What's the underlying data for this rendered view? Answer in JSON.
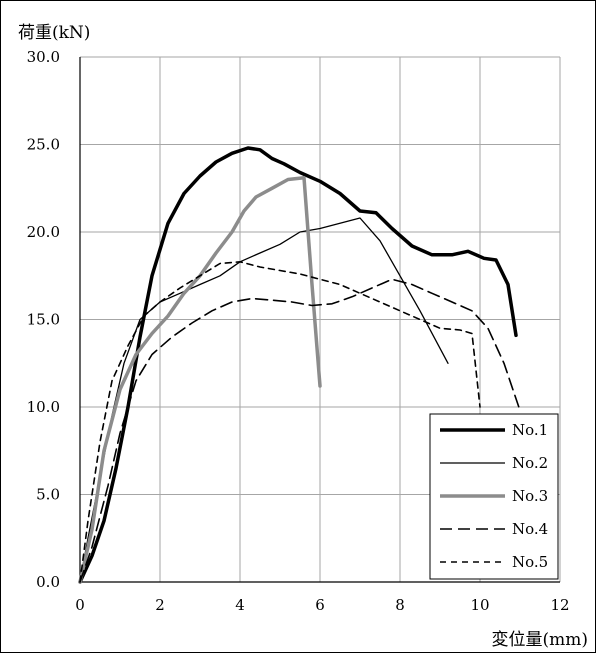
{
  "chart_data": {
    "type": "line",
    "title": "",
    "xlabel": "変位量(mm)",
    "ylabel": "荷重(kN)",
    "xlim": [
      0,
      12
    ],
    "ylim": [
      0,
      30
    ],
    "xticks": [
      "0",
      "2",
      "4",
      "6",
      "8",
      "10",
      "12"
    ],
    "yticks": [
      "0.0",
      "5.0",
      "10.0",
      "15.0",
      "20.0",
      "25.0",
      "30.0"
    ],
    "grid": true,
    "legend_position": "bottom-right",
    "series": [
      {
        "name": "No.1",
        "color": "#000000",
        "style": "solid-thick",
        "x": [
          0,
          0.3,
          0.6,
          0.9,
          1.2,
          1.5,
          1.8,
          2.2,
          2.6,
          3.0,
          3.4,
          3.8,
          4.2,
          4.5,
          4.8,
          5.1,
          5.5,
          6.0,
          6.5,
          7.0,
          7.4,
          7.8,
          8.3,
          8.8,
          9.3,
          9.7,
          10.1,
          10.4,
          10.7,
          10.9
        ],
        "y": [
          0,
          1.5,
          3.5,
          6.5,
          10.0,
          14.0,
          17.5,
          20.5,
          22.2,
          23.2,
          24.0,
          24.5,
          24.8,
          24.7,
          24.2,
          23.9,
          23.4,
          22.9,
          22.2,
          21.2,
          21.1,
          20.2,
          19.2,
          18.7,
          18.7,
          18.9,
          18.5,
          18.4,
          17.0,
          14.1
        ]
      },
      {
        "name": "No.2",
        "color": "#000000",
        "style": "solid-thin",
        "x": [
          0,
          0.2,
          0.5,
          0.8,
          1.1,
          1.5,
          2.0,
          2.5,
          3.0,
          3.5,
          4.0,
          4.5,
          5.0,
          5.5,
          6.0,
          6.5,
          7.0,
          7.5,
          8.0,
          8.5,
          9.2
        ],
        "y": [
          0,
          2.5,
          6.0,
          9.5,
          12.5,
          15.0,
          16.0,
          16.5,
          17.0,
          17.5,
          18.3,
          18.8,
          19.3,
          20.0,
          20.2,
          20.5,
          20.8,
          19.5,
          17.5,
          15.5,
          12.5
        ]
      },
      {
        "name": "No.3",
        "color": "#8c8c8c",
        "style": "solid-thick",
        "x": [
          0,
          0.3,
          0.6,
          1.0,
          1.4,
          1.8,
          2.2,
          2.6,
          3.0,
          3.4,
          3.8,
          4.1,
          4.4,
          4.8,
          5.2,
          5.6,
          5.8,
          6.0
        ],
        "y": [
          0,
          3.0,
          7.5,
          11.0,
          13.0,
          14.2,
          15.2,
          16.5,
          17.5,
          18.8,
          20.0,
          21.2,
          22.0,
          22.5,
          23.0,
          23.1,
          17.0,
          11.2
        ]
      },
      {
        "name": "No.4",
        "color": "#000000",
        "style": "long-dash",
        "x": [
          0,
          0.3,
          0.7,
          1.0,
          1.4,
          1.8,
          2.3,
          2.8,
          3.3,
          3.8,
          4.3,
          4.8,
          5.3,
          5.8,
          6.3,
          6.8,
          7.3,
          7.8,
          8.3,
          8.8,
          9.3,
          9.8,
          10.2,
          10.6,
          11.0
        ],
        "y": [
          0,
          2.0,
          5.5,
          8.5,
          11.5,
          13.0,
          14.0,
          14.8,
          15.5,
          16.0,
          16.2,
          16.1,
          16.0,
          15.8,
          15.9,
          16.3,
          16.8,
          17.3,
          17.0,
          16.5,
          16.0,
          15.5,
          14.5,
          12.5,
          9.8
        ]
      },
      {
        "name": "No.5",
        "color": "#000000",
        "style": "short-dash",
        "x": [
          0,
          0.2,
          0.5,
          0.8,
          1.2,
          1.6,
          2.0,
          2.5,
          3.0,
          3.5,
          4.0,
          4.5,
          5.0,
          5.5,
          6.0,
          6.5,
          7.0,
          7.5,
          8.0,
          8.5,
          9.0,
          9.5,
          9.8,
          10.0
        ],
        "y": [
          0,
          3.5,
          8.0,
          11.5,
          13.5,
          15.2,
          16.0,
          16.8,
          17.5,
          18.2,
          18.3,
          18.0,
          17.8,
          17.6,
          17.3,
          17.0,
          16.5,
          16.0,
          15.5,
          15.0,
          14.5,
          14.4,
          14.2,
          10.0
        ]
      }
    ]
  }
}
